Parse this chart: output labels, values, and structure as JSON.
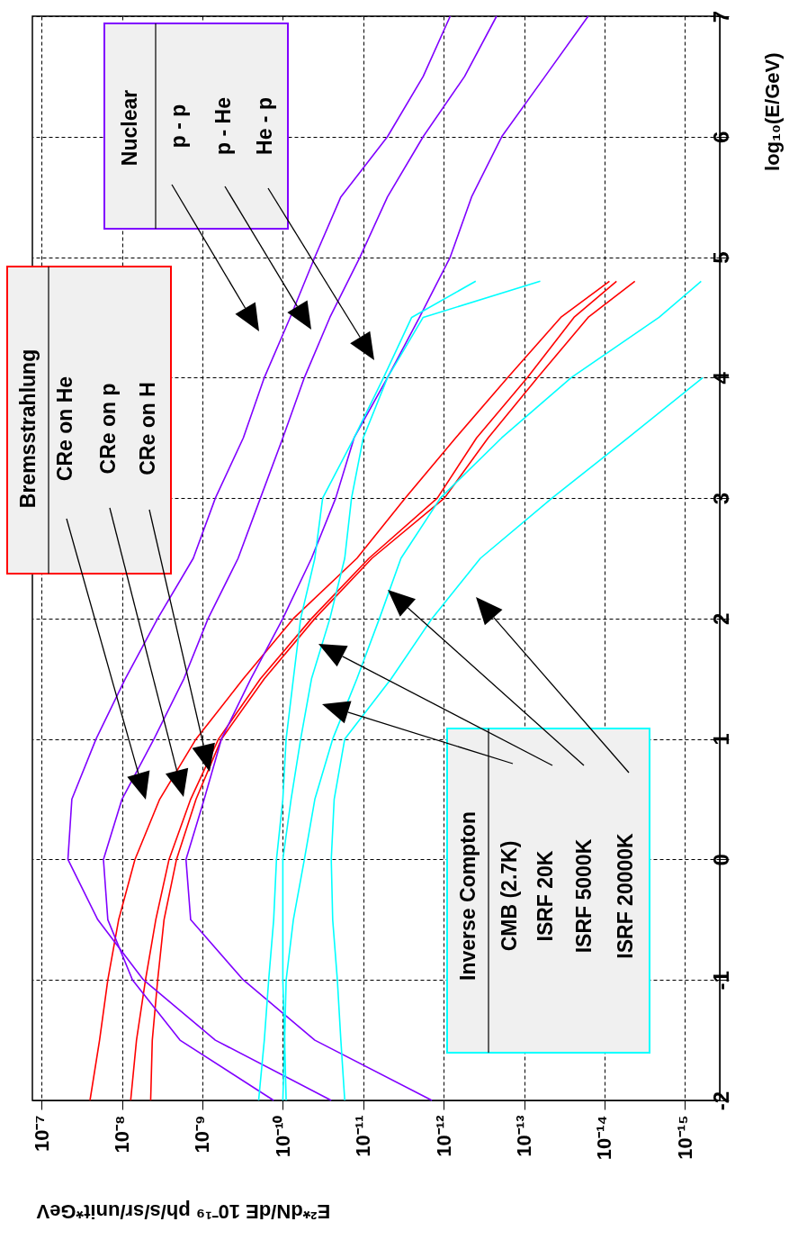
{
  "chart_data": {
    "type": "line",
    "xlabel": "E²*dN/dE 10⁻¹⁹ ph/s/sr/unit*GeV",
    "ylabel": "log₁₀(E/GeV)",
    "ylim": [
      -2,
      7
    ],
    "yticks": [
      -2,
      -1,
      0,
      1,
      2,
      3,
      4,
      5,
      6,
      7
    ],
    "xlim": [
      1.3e-07,
      3.7e-16
    ],
    "xticks": [
      {
        "value": 1e-07,
        "label": "10⁻⁷"
      },
      {
        "value": 1e-08,
        "label": "10⁻⁸"
      },
      {
        "value": 1e-09,
        "label": "10⁻⁹"
      },
      {
        "value": 1e-10,
        "label": "10⁻¹⁰"
      },
      {
        "value": 1e-11,
        "label": "10⁻¹¹"
      },
      {
        "value": 1e-12,
        "label": "10⁻¹²"
      },
      {
        "value": 1e-13,
        "label": "10⁻¹³"
      },
      {
        "value": 1e-14,
        "label": "10⁻¹⁴"
      },
      {
        "value": 1e-15,
        "label": "10⁻¹⁵"
      }
    ],
    "log": "x",
    "grid": true,
    "annotations": [
      "Bremsstrahlung",
      "Nuclear",
      "Inverse Compton",
      "CRe on He",
      "CRe on p",
      "CRe on H",
      "p - p",
      "p - He",
      "He - p",
      "CMB (2.7K)",
      "ISRF 20K",
      "ISRF 5000K",
      "ISRF 20000K"
    ],
    "series": [
      {
        "color": "#ff0000",
        "values": [
          -2,
          -1.5,
          -1,
          -0.5,
          0,
          0.5,
          1,
          1.5,
          2,
          2.5,
          3,
          3.5,
          4,
          4.5,
          4.8
        ],
        "x": [
          2.5e-08,
          1.9e-08,
          1.5e-08,
          1.1e-08,
          6.9e-09,
          3.4e-09,
          1.2e-09,
          3.1e-10,
          7.4e-11,
          1.2e-11,
          3e-12,
          7.1e-13,
          1.6e-13,
          3.5e-14,
          8.7e-15
        ]
      },
      {
        "color": "#ff0000",
        "values": [
          -2,
          -1.5,
          -1,
          -0.5,
          0,
          0.5,
          1,
          1.5,
          2,
          2.5,
          3,
          3.5,
          4,
          4.5,
          4.8
        ],
        "x": [
          7.8e-09,
          6.6e-09,
          5.1e-09,
          3.8e-09,
          2.6e-09,
          1.4e-09,
          6.3e-10,
          1.9e-10,
          4.4e-11,
          8.5e-12,
          1.2e-12,
          3.9e-13,
          9.1e-14,
          2.4e-14,
          7.1e-15
        ]
      },
      {
        "color": "#ff0000",
        "values": [
          -2,
          -1.5,
          -1,
          -0.5,
          0,
          0.5,
          1,
          1.5,
          2,
          2.5,
          3,
          3.5,
          4,
          4.5,
          4.8
        ],
        "x": [
          4.4e-09,
          4.2e-09,
          3.6e-09,
          3e-09,
          2.1e-09,
          1.2e-09,
          5.8e-10,
          1.7e-10,
          4e-11,
          7.8e-12,
          9.8e-13,
          2.8e-13,
          6.8e-14,
          1.6e-14,
          4.2e-15
        ]
      },
      {
        "color": "#8000ff",
        "values": [
          -2,
          -1.5,
          -1,
          -0.5,
          0,
          0.5,
          1,
          1.5,
          2,
          2.5,
          3,
          3.5,
          4,
          4.5,
          5,
          5.5,
          6,
          6.5,
          7
        ],
        "x": [
          2.5e-11,
          6.9e-10,
          5.4e-09,
          2e-08,
          4.7e-08,
          4.2e-08,
          2.1e-08,
          9.1e-09,
          3.6e-09,
          1.3e-09,
          6.9e-10,
          3.1e-10,
          1.7e-10,
          8.1e-11,
          4e-11,
          1.9e-11,
          5e-12,
          1.8e-12,
          8.3e-13
        ]
      },
      {
        "color": "#8000ff",
        "values": [
          -2,
          -1.5,
          -1,
          -0.5,
          0,
          0.5,
          1,
          1.5,
          2,
          2.5,
          3,
          3.5,
          4,
          4.5,
          5,
          5.5,
          6,
          6.5,
          7
        ],
        "x": [
          1.3e-10,
          1.9e-09,
          7.4e-09,
          1.5e-08,
          1.7e-08,
          1e-08,
          4e-09,
          1.7e-09,
          8.5e-10,
          3.6e-10,
          1.9e-10,
          1e-10,
          5.4e-11,
          2.6e-11,
          1.1e-11,
          5e-12,
          1.8e-12,
          5.5e-13,
          2.2e-13
        ]
      },
      {
        "color": "#8000ff",
        "values": [
          -2,
          -1.5,
          -1,
          -0.5,
          0,
          0.5,
          1,
          1.5,
          2,
          2.5,
          3,
          3.5,
          4,
          4.5,
          5,
          5.5,
          6,
          6.5,
          7
        ],
        "x": [
          1.4e-12,
          4e-11,
          3.1e-10,
          1.4e-09,
          1.6e-09,
          9.5e-10,
          5.8e-10,
          2.5e-10,
          1e-10,
          4.4e-11,
          2.2e-11,
          1.3e-11,
          5e-12,
          2e-12,
          8.3e-13,
          4.5e-13,
          1.9e-13,
          5.5e-14,
          1.6e-14
        ]
      },
      {
        "color": "#00ffff",
        "values": [
          -2,
          -1.5,
          -1,
          -0.5,
          0,
          0.5,
          1,
          1.5,
          2,
          2.5,
          3,
          3.5,
          4,
          4.5,
          4.8
        ],
        "x": [
          2e-10,
          1.7e-10,
          1.5e-10,
          1.3e-10,
          1.2e-10,
          1e-10,
          9.1e-11,
          7.4e-11,
          6e-11,
          4e-11,
          3.2e-11,
          1.3e-11,
          5.6e-12,
          2.5e-12,
          4e-13
        ]
      },
      {
        "color": "#00ffff",
        "values": [
          -2,
          -1.5,
          -1,
          -0.5,
          0,
          0.5,
          1,
          1.5,
          2,
          2.5,
          3,
          3.5,
          4,
          4.5,
          4.8
        ],
        "x": [
          9.1e-11,
          9.5e-11,
          1e-10,
          1e-10,
          1e-10,
          7.9e-11,
          6e-11,
          4.4e-11,
          2.6e-11,
          1.7e-11,
          1.4e-11,
          1e-11,
          5e-12,
          1.8e-12,
          6.3e-14
        ]
      },
      {
        "color": "#00ffff",
        "values": [
          -2,
          -1.5,
          -1,
          -0.5,
          0,
          0.5,
          1,
          1.5,
          2,
          2.5,
          3,
          3.5,
          4,
          4.5,
          4.8
        ],
        "x": [
          1e-10,
          9.5e-11,
          9.1e-11,
          7.4e-11,
          5.4e-11,
          4e-11,
          2.4e-11,
          1.2e-11,
          6.3e-12,
          3.4e-12,
          1.1e-12,
          1.9e-13,
          2.6e-14,
          2.1e-15,
          6.3e-16
        ]
      },
      {
        "color": "#00ffff",
        "values": [
          -2,
          -1.5,
          -1,
          -0.5,
          0,
          0.5,
          1,
          1.5,
          2,
          2.5,
          3,
          3.5,
          4
        ],
        "x": [
          1.7e-11,
          1.9e-11,
          2.1e-11,
          2.4e-11,
          2.5e-11,
          2.3e-11,
          1.7e-11,
          4.5e-12,
          1.4e-12,
          3.5e-13,
          4.5e-14,
          5.1e-15,
          6e-16
        ]
      }
    ]
  }
}
